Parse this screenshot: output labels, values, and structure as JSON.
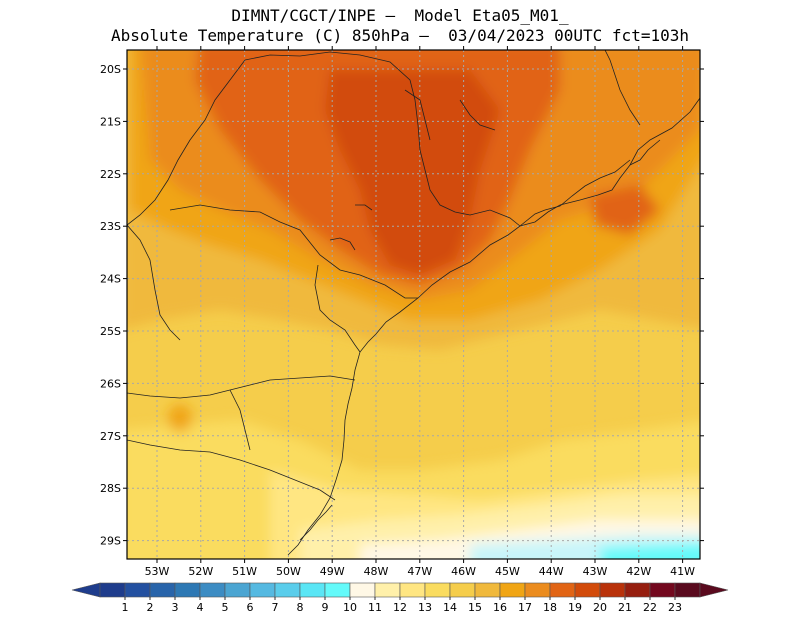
{
  "title": {
    "line1": "DIMNT/CGCT/INPE –  Model Eta05_M01_",
    "line2": "Absolute Temperature (C) 850hPa –  03/04/2023 00UTC fct=103h"
  },
  "map": {
    "lat_labels": [
      "20S",
      "21S",
      "22S",
      "23S",
      "24S",
      "25S",
      "26S",
      "27S",
      "28S",
      "29S"
    ],
    "lon_labels": [
      "53W",
      "52W",
      "51W",
      "50W",
      "49W",
      "48W",
      "47W",
      "46W",
      "45W",
      "44W",
      "43W",
      "42W",
      "41W"
    ]
  },
  "colorbar": {
    "labels": [
      "1",
      "2",
      "3",
      "4",
      "5",
      "6",
      "7",
      "8",
      "9",
      "10",
      "11",
      "12",
      "13",
      "14",
      "15",
      "16",
      "17",
      "18",
      "19",
      "20",
      "21",
      "22",
      "23"
    ],
    "colors": [
      "#1e3c8c",
      "#2350a0",
      "#2864aa",
      "#2d78b4",
      "#3c8cc3",
      "#4ba5d2",
      "#55b9e1",
      "#5acdeb",
      "#5ae6f5",
      "#64fafa",
      "#fff8e6",
      "#fff0aa",
      "#ffe682",
      "#fadc5f",
      "#f5cd4b",
      "#f0b93c",
      "#f0a514",
      "#eb8c1e",
      "#e16414",
      "#d24b0a",
      "#b9320a",
      "#961e0f",
      "#73081e",
      "#5a0a1e"
    ],
    "low_arrow_color": "#1e3c8c",
    "high_arrow_color": "#5a0a1e"
  }
}
